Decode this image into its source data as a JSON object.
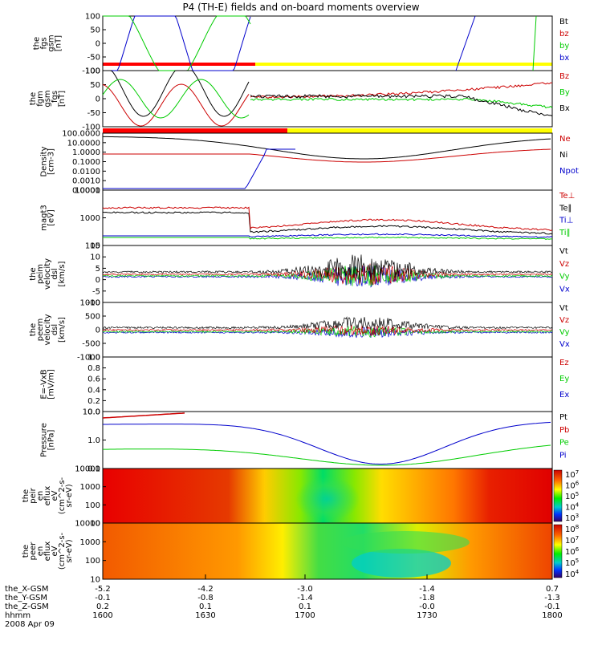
{
  "title": "P4 (TH-E) fields and on-board moments overview",
  "colors": {
    "black": "#000000",
    "red": "#cc0000",
    "green": "#00cc00",
    "blue": "#0000cc",
    "yellow": "#ffff00",
    "bar_red": "#ff0000"
  },
  "panels": [
    {
      "ylabel": [
        "the",
        "fgs",
        "gsm",
        "[nT]"
      ],
      "ticks": [
        "100",
        "50",
        "0",
        "-50",
        "-100"
      ],
      "legend": [
        [
          "Bt",
          "black"
        ],
        [
          "bz",
          "red"
        ],
        [
          "by",
          "green"
        ],
        [
          "bx",
          "blue"
        ]
      ]
    },
    {
      "ylabel": [
        "the",
        "fgm",
        "gsm",
        "_fgs",
        "[nT]"
      ],
      "ticks": [
        "100",
        "50",
        "0",
        "-50",
        "-100"
      ],
      "legend": [
        [
          "Bz",
          "red"
        ],
        [
          "By",
          "green"
        ],
        [
          "Bx",
          "black"
        ]
      ]
    },
    {
      "ylabel": [
        "Density",
        "[cm-3]"
      ],
      "ticks": [
        "100.0000",
        "10.0000",
        "1.0000",
        "0.1000",
        "0.0100",
        "0.0010",
        "0.0001"
      ],
      "legend": [
        [
          "Ne",
          "red"
        ],
        [
          "Ni",
          "black"
        ],
        [
          "Npot",
          "blue"
        ]
      ]
    },
    {
      "ylabel": [
        "magt3",
        "[eV]"
      ],
      "ticks": [
        "10000",
        "1000",
        "100"
      ],
      "legend": [
        [
          "Te⊥",
          "red"
        ],
        [
          "Te∥",
          "black"
        ],
        [
          "Ti⊥",
          "blue"
        ],
        [
          "Ti∥",
          "green"
        ]
      ]
    },
    {
      "ylabel": [
        "the",
        "peim",
        "velocity",
        "dsl",
        "[km/s]"
      ],
      "ticks": [
        "15",
        "10",
        "5",
        "0",
        "-5",
        "-10"
      ],
      "legend": [
        [
          "Vt",
          "black"
        ],
        [
          "Vz",
          "red"
        ],
        [
          "Vy",
          "green"
        ],
        [
          "Vx",
          "blue"
        ]
      ]
    },
    {
      "ylabel": [
        "the",
        "peem",
        "velocity",
        "dsl",
        "[km/s]"
      ],
      "ticks": [
        "1000",
        "500",
        "0",
        "-500",
        "-1000"
      ],
      "legend": [
        [
          "Vt",
          "black"
        ],
        [
          "Vz",
          "red"
        ],
        [
          "Vy",
          "green"
        ],
        [
          "Vx",
          "blue"
        ]
      ]
    },
    {
      "ylabel": [
        "E=-VxB",
        "[mV/m]"
      ],
      "ticks": [
        "1.0",
        "0.8",
        "0.6",
        "0.4",
        "0.2",
        "0.0"
      ],
      "legend": [
        [
          "Ez",
          "red"
        ],
        [
          "Ey",
          "green"
        ],
        [
          "Ex",
          "blue"
        ]
      ]
    },
    {
      "ylabel": [
        "Pressure",
        "[nPa]"
      ],
      "ticks": [
        "10.0",
        "1.0",
        "0.1"
      ],
      "legend": [
        [
          "Pt",
          "black"
        ],
        [
          "Pb",
          "red"
        ],
        [
          "Pe",
          "green"
        ],
        [
          "Pi",
          "blue"
        ]
      ]
    },
    {
      "ylabel": [
        "the",
        "peir",
        "en",
        "eflux",
        "eV",
        "(cm^2-s-",
        "sr-eV)"
      ],
      "ticks": [
        "10000",
        "1000",
        "100",
        "10"
      ],
      "cbar": [
        "10^7",
        "10^6",
        "10^5",
        "10^4",
        "10^3"
      ]
    },
    {
      "ylabel": [
        "the",
        "peer",
        "en",
        "eflux",
        "eV",
        "(cm^2-s-",
        "sr-eV)"
      ],
      "ticks": [
        "10000",
        "1000",
        "100",
        "10"
      ],
      "cbar": [
        "10^8",
        "10^7",
        "10^6",
        "10^5",
        "10^4"
      ]
    }
  ],
  "xaxis": {
    "rows": [
      {
        "label": "the_X-GSM",
        "values": [
          "-5.2",
          "-4.2",
          "-3.0",
          "-1.4",
          "0.7"
        ]
      },
      {
        "label": "the_Y-GSM",
        "values": [
          "-0.1",
          "-0.8",
          "-1.4",
          "-1.8",
          "-1.3"
        ]
      },
      {
        "label": "the_Z-GSM",
        "values": [
          "0.2",
          "0.1",
          "0.1",
          "-0.0",
          "-0.1"
        ]
      },
      {
        "label": "hhmm",
        "values": [
          "1600",
          "1630",
          "1700",
          "1730",
          "1800"
        ]
      }
    ],
    "date": "2008 Apr 09"
  },
  "chart_data": {
    "type": "line",
    "title": "P4 (TH-E) fields and on-board moments overview",
    "x": [
      "1600",
      "1630",
      "1700",
      "1730",
      "1800"
    ],
    "xlabel": "hhmm",
    "series": [
      {
        "name": "Ni",
        "values": [
          60,
          15,
          0.4,
          10,
          90
        ]
      },
      {
        "name": "Ne",
        "values": [
          1,
          5,
          0.1,
          1,
          10
        ]
      },
      {
        "name": "Bz",
        "values": [
          0,
          10,
          10,
          20,
          40
        ]
      },
      {
        "name": "Bx",
        "values": [
          0,
          5,
          5,
          -20,
          -80
        ]
      }
    ]
  }
}
